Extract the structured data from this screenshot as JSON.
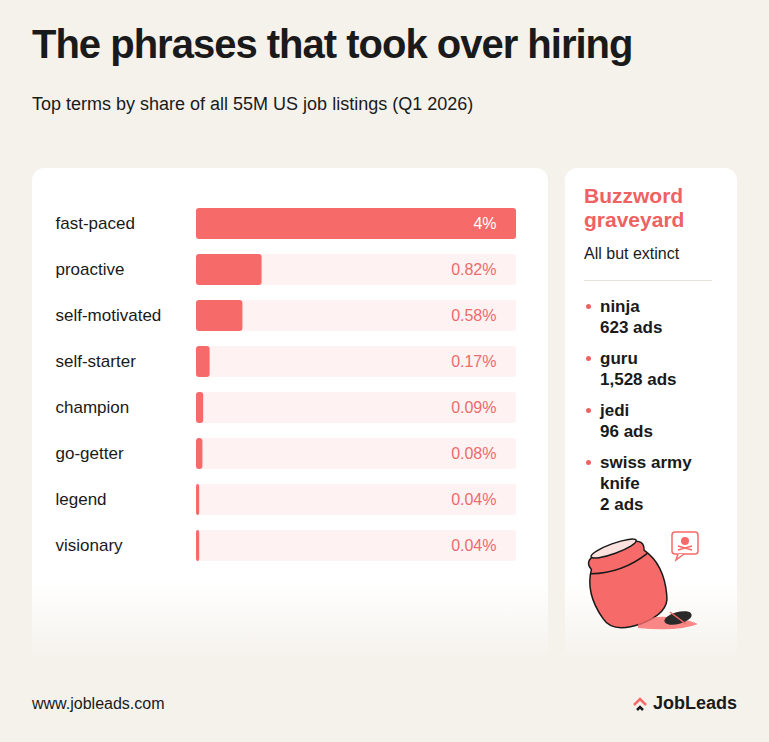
{
  "chart_data": {
    "type": "bar",
    "title": "The phrases that took over hiring",
    "subtitle": "Top terms by share of all 55M US job listings (Q1 2026)",
    "orientation": "horizontal",
    "categories": [
      "fast-paced",
      "proactive",
      "self-motivated",
      "self-starter",
      "champion",
      "go-getter",
      "legend",
      "visionary"
    ],
    "values": [
      4,
      0.82,
      0.58,
      0.17,
      0.09,
      0.08,
      0.04,
      0.04
    ],
    "value_labels": [
      "4%",
      "0.82%",
      "0.58%",
      "0.17%",
      "0.09%",
      "0.08%",
      "0.04%",
      "0.04%"
    ],
    "data_labels": true,
    "tick_labels": "y",
    "xlim": [
      0,
      4
    ],
    "color": "#f76a6a"
  },
  "graveyard": {
    "title": "Buzzword graveyard",
    "subtitle": "All but extinct",
    "unit": "ads",
    "items": [
      {
        "term": "ninja",
        "ads": 623
      },
      {
        "term": "guru",
        "ads": 1528
      },
      {
        "term": "jedi",
        "ads": 96
      },
      {
        "term": "swiss army knife",
        "ads": 2
      }
    ]
  },
  "footer": {
    "url": "www.jobleads.com",
    "brand": "JobLeads"
  }
}
